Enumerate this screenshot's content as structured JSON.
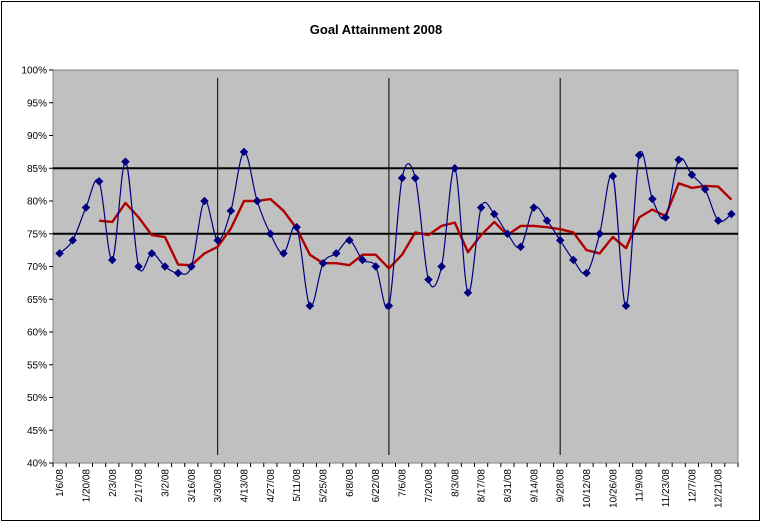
{
  "chart_data": {
    "type": "line",
    "title": "Goal Attainment 2008",
    "xlabel": "",
    "ylabel": "",
    "ylim": [
      0.4,
      1.0
    ],
    "y_ticks": [
      "40%",
      "45%",
      "50%",
      "55%",
      "60%",
      "65%",
      "70%",
      "75%",
      "80%",
      "85%",
      "90%",
      "95%",
      "100%"
    ],
    "x_tick_labels": [
      "1/6/08",
      "1/20/08",
      "2/3/08",
      "2/17/08",
      "3/2/08",
      "3/16/08",
      "3/30/08",
      "4/13/08",
      "4/27/08",
      "5/11/08",
      "5/25/08",
      "6/8/08",
      "6/22/08",
      "7/6/08",
      "7/20/08",
      "8/3/08",
      "8/17/08",
      "8/31/08",
      "9/14/08",
      "9/28/08",
      "10/12/08",
      "10/26/08",
      "11/9/08",
      "11/23/08",
      "12/7/08",
      "12/21/08"
    ],
    "grid": false,
    "plot_background": "#c0c0c0",
    "reference_lines": [
      0.75,
      0.85
    ],
    "quarter_separators_after_week": [
      12.5,
      25.5,
      38.5
    ],
    "series": [
      {
        "name": "",
        "style": "smooth-line-with-diamond-markers",
        "color": "#000080",
        "values": [
          0.72,
          0.74,
          0.79,
          0.83,
          0.71,
          0.86,
          0.7,
          0.72,
          0.7,
          0.69,
          0.7,
          0.8,
          0.74,
          0.785,
          0.875,
          0.8,
          0.75,
          0.72,
          0.76,
          0.64,
          0.705,
          0.72,
          0.74,
          0.71,
          0.7,
          0.64,
          0.835,
          0.835,
          0.68,
          0.7,
          0.85,
          0.66,
          0.79,
          0.78,
          0.75,
          0.73,
          0.79,
          0.77,
          0.74,
          0.71,
          0.69,
          0.75,
          0.838,
          0.64,
          0.87,
          0.803,
          0.775,
          0.863,
          0.84,
          0.818,
          0.77,
          0.78
        ]
      },
      {
        "name": "",
        "style": "line",
        "color": "#b00000",
        "values": [
          null,
          null,
          null,
          0.77,
          0.768,
          0.797,
          0.775,
          0.748,
          0.745,
          0.703,
          0.702,
          0.72,
          0.73,
          0.758,
          0.8,
          0.8,
          0.803,
          0.785,
          0.758,
          0.718,
          0.705,
          0.705,
          0.702,
          0.718,
          0.718,
          0.697,
          0.718,
          0.752,
          0.748,
          0.762,
          0.767,
          0.722,
          0.748,
          0.768,
          0.748,
          0.762,
          0.762,
          0.76,
          0.757,
          0.752,
          0.725,
          0.72,
          0.745,
          0.728,
          0.775,
          0.787,
          0.777,
          0.827,
          0.82,
          0.823,
          0.822,
          0.802
        ]
      }
    ]
  }
}
